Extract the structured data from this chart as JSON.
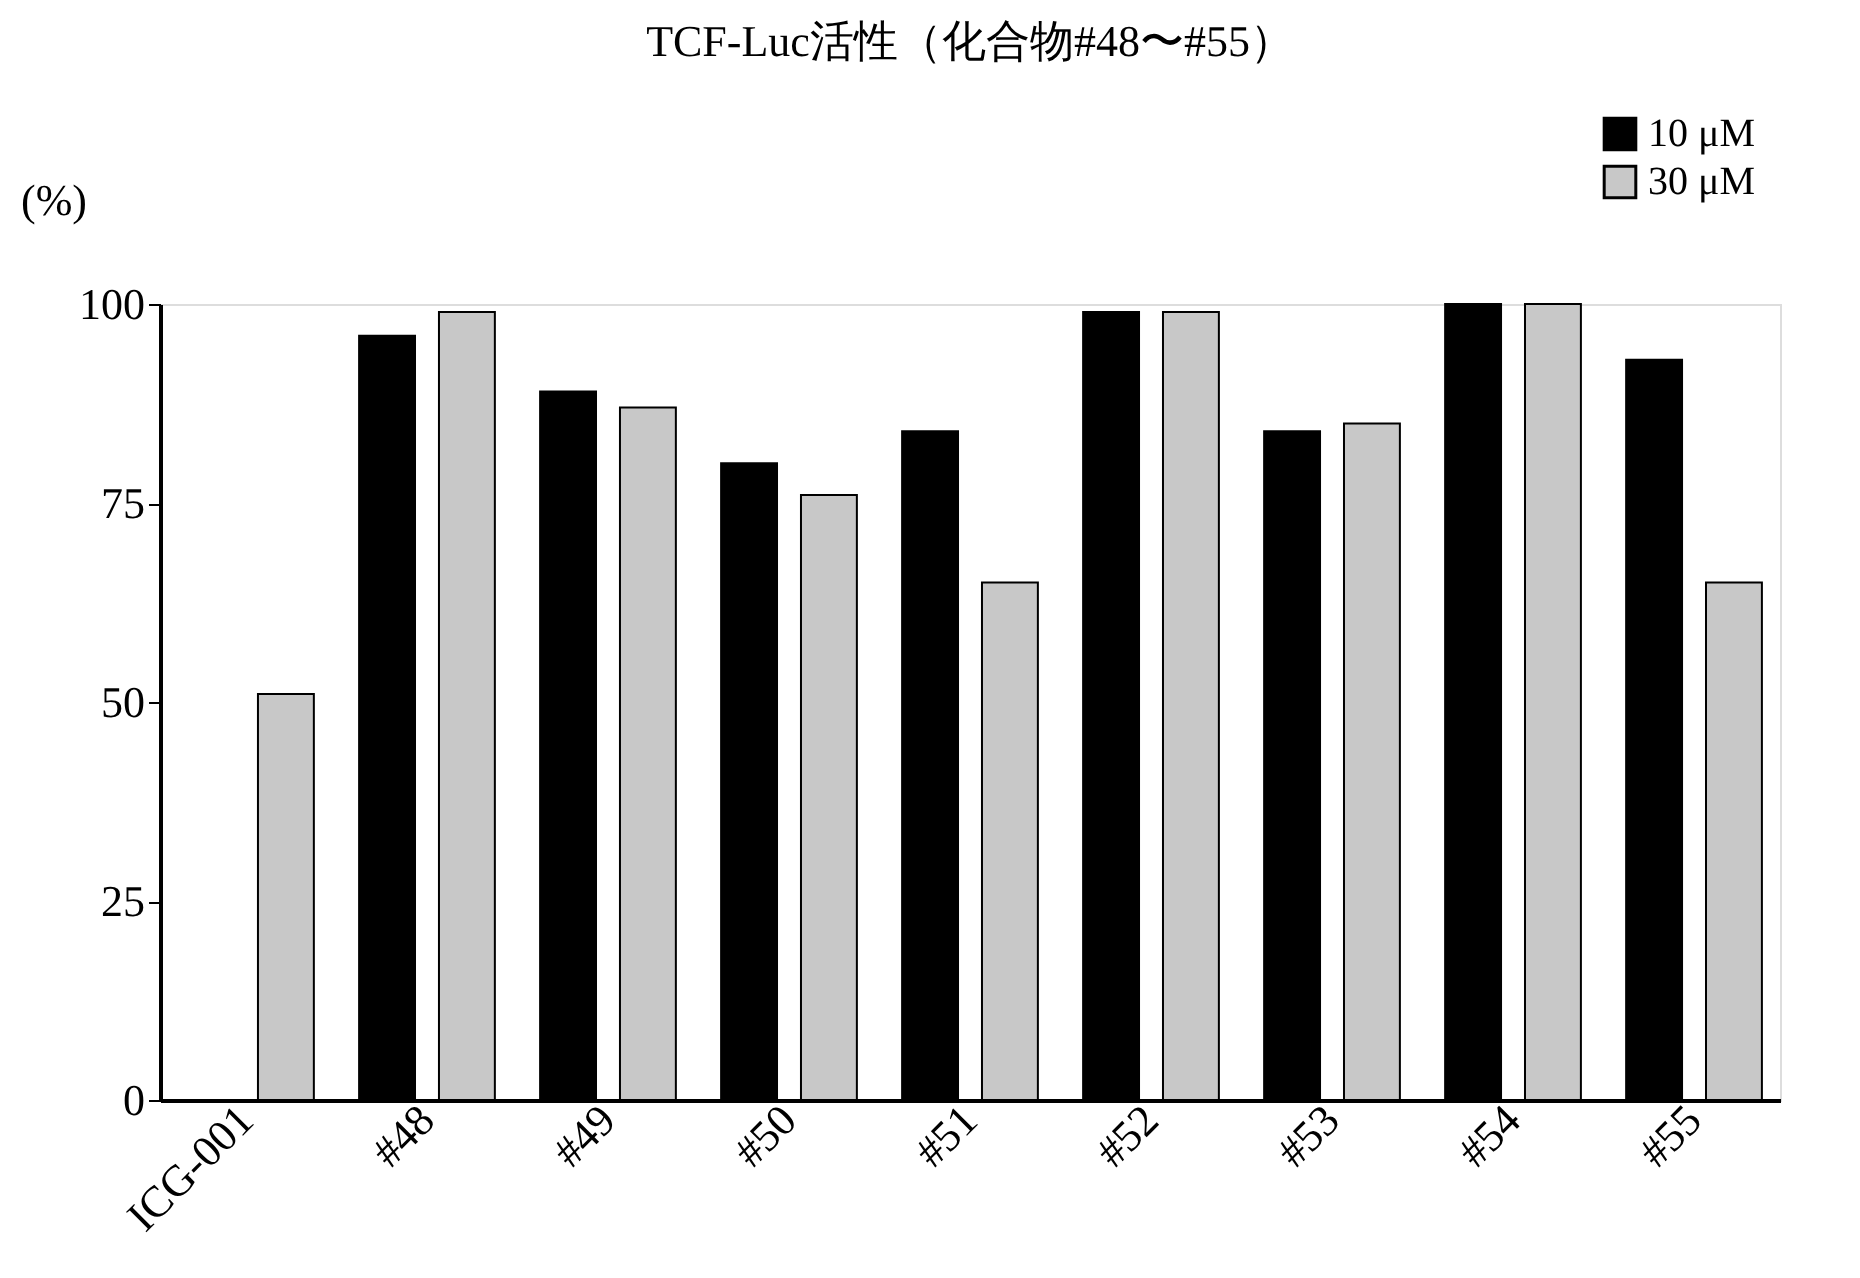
{
  "chart_data": {
    "type": "bar",
    "title": "TCF-Luc活性（化合物#48〜#55）",
    "ylabel": "(%)",
    "categories": [
      "ICG-001",
      "#48",
      "#49",
      "#50",
      "#51",
      "#52",
      "#53",
      "#54",
      "#55"
    ],
    "series": [
      {
        "name": "10 μM",
        "color": "#000000",
        "values": [
          null,
          96,
          89,
          80,
          84,
          99,
          84,
          100,
          93
        ]
      },
      {
        "name": "30 μM",
        "color": "#c8c8c8",
        "values": [
          51,
          99,
          87,
          76,
          65,
          99,
          85,
          100,
          65
        ]
      }
    ],
    "ylim": [
      0,
      100
    ],
    "yticks": [
      0,
      25,
      50,
      75,
      100
    ],
    "grid": false,
    "legend": "top right"
  }
}
